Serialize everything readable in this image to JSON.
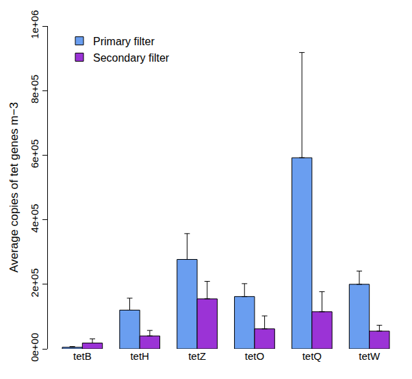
{
  "chart_data": {
    "type": "bar",
    "y_label": "Average copies of tet genes m−3",
    "categories": [
      "tetB",
      "tetH",
      "tetZ",
      "tetO",
      "tetQ",
      "tetW"
    ],
    "series": [
      {
        "name": "Primary filter",
        "color": "#6a9ef0",
        "values": [
          5000,
          120000,
          277000,
          162000,
          592000,
          200000
        ],
        "errors": [
          2000,
          37000,
          80000,
          40000,
          326000,
          41000
        ]
      },
      {
        "name": "Secondary filter",
        "color": "#9b33d6",
        "values": [
          18000,
          40000,
          155000,
          62000,
          115000,
          55000
        ],
        "errors": [
          13000,
          17000,
          54000,
          40000,
          62000,
          18000
        ]
      }
    ],
    "ylim": [
      0,
      1000000
    ],
    "yticks": [
      {
        "value": 0,
        "label": "0e+00"
      },
      {
        "value": 200000,
        "label": "2e+05"
      },
      {
        "value": 400000,
        "label": "4e+05"
      },
      {
        "value": 600000,
        "label": "6e+05"
      },
      {
        "value": 800000,
        "label": "8e+05"
      },
      {
        "value": 1000000,
        "label": "1e+06"
      }
    ],
    "grid": false,
    "legend": "top-left"
  }
}
